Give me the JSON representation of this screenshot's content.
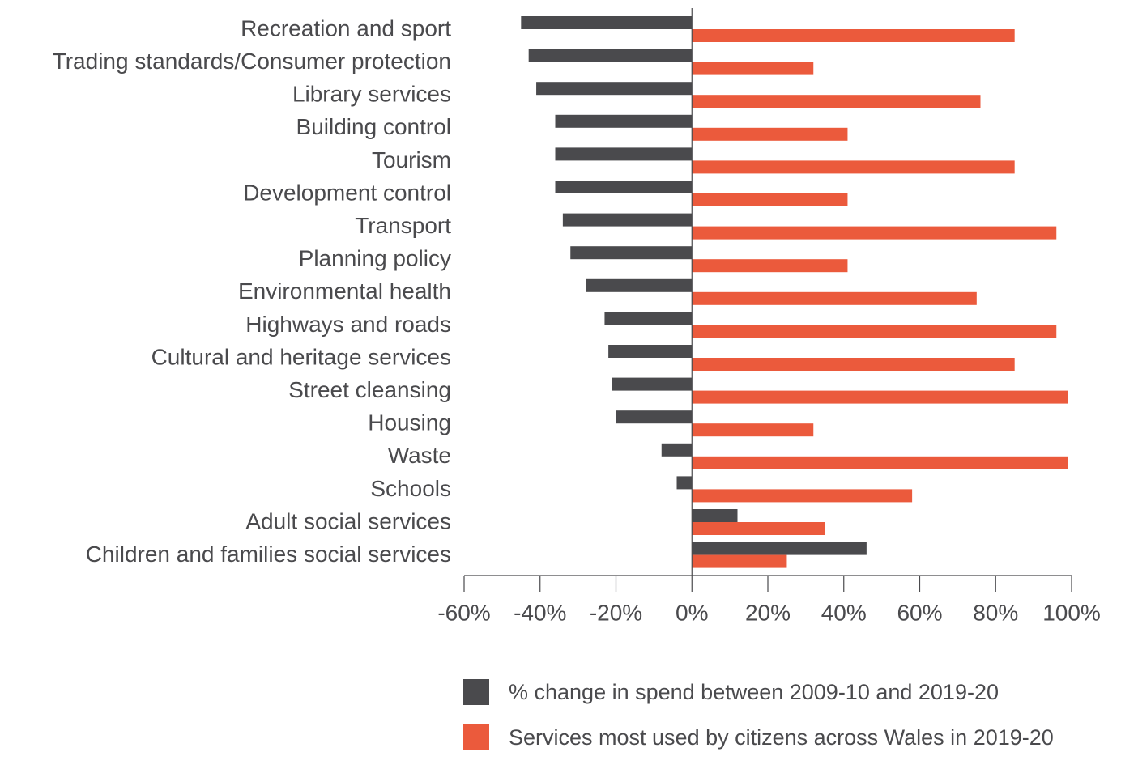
{
  "chart_data": {
    "type": "bar",
    "orientation": "horizontal",
    "categories": [
      "Recreation and sport",
      "Trading standards/Consumer protection",
      "Library services",
      "Building control",
      "Tourism",
      "Development control",
      "Transport",
      "Planning policy",
      "Environmental health",
      "Highways and roads",
      "Cultural and heritage services",
      "Street cleansing",
      "Housing",
      "Waste",
      "Schools",
      "Adult social services",
      "Children and families social services"
    ],
    "series": [
      {
        "name": "% change in spend between 2009-10 and 2019-20",
        "color": "#4a4a4d",
        "values": [
          -45,
          -43,
          -41,
          -36,
          -36,
          -36,
          -34,
          -32,
          -28,
          -23,
          -22,
          -21,
          -20,
          -8,
          -4,
          12,
          46
        ]
      },
      {
        "name": "Services most used by citizens across Wales in 2019-20",
        "color": "#eb5a3c",
        "values": [
          85,
          32,
          76,
          41,
          85,
          41,
          96,
          41,
          75,
          96,
          85,
          99,
          32,
          99,
          58,
          35,
          25
        ]
      }
    ],
    "xlim": [
      -60,
      100
    ],
    "xticks": [
      -60,
      -40,
      -20,
      0,
      20,
      40,
      60,
      80,
      100
    ],
    "xtick_labels": [
      "-60%",
      "-40%",
      "-20%",
      "0%",
      "20%",
      "40%",
      "60%",
      "80%",
      "100%"
    ],
    "grid": false,
    "legend_position": "bottom"
  }
}
